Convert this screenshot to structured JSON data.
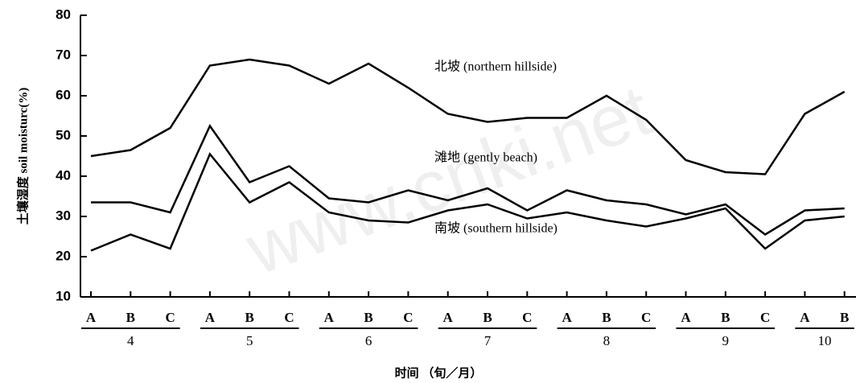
{
  "chart_data": {
    "type": "line",
    "y_label": "土壤湿度 soil moisturc(%)",
    "x_label": "时间 （旬／月）",
    "watermark": "www.cnki.net",
    "groups": [
      {
        "name": "4",
        "categories": [
          "A",
          "B",
          "C"
        ]
      },
      {
        "name": "5",
        "categories": [
          "A",
          "B",
          "C"
        ]
      },
      {
        "name": "6",
        "categories": [
          "A",
          "B",
          "C"
        ]
      },
      {
        "name": "7",
        "categories": [
          "A",
          "B",
          "C"
        ]
      },
      {
        "name": "8",
        "categories": [
          "A",
          "B",
          "C"
        ]
      },
      {
        "name": "9",
        "categories": [
          "A",
          "B",
          "C"
        ]
      },
      {
        "name": "10",
        "categories": [
          "A",
          "B"
        ]
      }
    ],
    "series": [
      {
        "name": "北坡 (northern hillside)",
        "color": "#000000",
        "values": [
          45,
          46.5,
          52,
          67.5,
          69,
          67.5,
          63,
          68,
          62,
          55.5,
          53.5,
          54.5,
          54.5,
          60,
          54,
          44,
          41,
          40.5,
          55.5,
          61
        ]
      },
      {
        "name": "滩地 (gently beach)",
        "color": "#000000",
        "values": [
          33.5,
          33.5,
          31,
          52.5,
          38.5,
          42.5,
          34.5,
          33.5,
          36.5,
          34,
          37,
          31.5,
          36.5,
          34,
          33,
          30.5,
          33,
          25.5,
          31.5,
          32
        ]
      },
      {
        "name": "南坡 (southern hillside)",
        "color": "#000000",
        "values": [
          21.5,
          25.5,
          22,
          45.5,
          33.5,
          38.5,
          31,
          29,
          28.5,
          31.5,
          33,
          29.5,
          31,
          29,
          27.5,
          29.5,
          32,
          22,
          29,
          30
        ]
      }
    ],
    "ylim": [
      10,
      80
    ],
    "yticks": [
      10,
      20,
      30,
      40,
      50,
      60,
      70,
      80
    ]
  }
}
